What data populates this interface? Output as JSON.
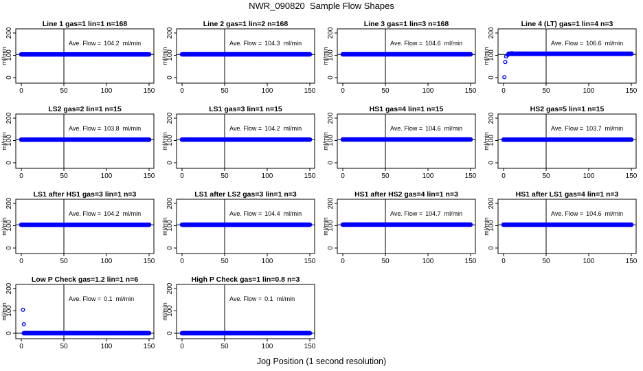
{
  "title": "NWR_090820  Sample Flow Shapes",
  "xlabel": "Jog Position (1 second resolution)",
  "colors": {
    "points": "#0000ff",
    "axes": "#000000",
    "background": "#ffffff"
  },
  "chart_data": [
    {
      "type": "scatter",
      "title": "Line 1 gas=1 lin=1 n=168",
      "ylabel": "ml/min",
      "annotation_label": "Ave. Flow =",
      "annotation_value": "104.2",
      "annotation_unit": "ml/min",
      "xlim": [
        0,
        150
      ],
      "ylim": [
        0,
        200
      ],
      "x_ticks": [
        "0",
        "50",
        "100",
        "150"
      ],
      "y_ticks": [
        "0",
        "100",
        "200"
      ],
      "vline_x": 50,
      "hline_y": 104,
      "series": [
        {
          "x_range": [
            0,
            150
          ],
          "y": 104.2,
          "outliers": []
        }
      ]
    },
    {
      "type": "scatter",
      "title": "Line 2 gas=1 lin=2 n=168",
      "ylabel": "ml/min",
      "annotation_label": "Ave. Flow =",
      "annotation_value": "104.3",
      "annotation_unit": "ml/min",
      "xlim": [
        0,
        150
      ],
      "ylim": [
        0,
        200
      ],
      "x_ticks": [
        "0",
        "50",
        "100",
        "150"
      ],
      "y_ticks": [
        "0",
        "100",
        "200"
      ],
      "vline_x": 50,
      "hline_y": 104,
      "series": [
        {
          "x_range": [
            0,
            150
          ],
          "y": 104.3,
          "outliers": []
        }
      ]
    },
    {
      "type": "scatter",
      "title": "Line 3 gas=1 lin=3 n=168",
      "ylabel": "ml/min",
      "annotation_label": "Ave. Flow =",
      "annotation_value": "104.6",
      "annotation_unit": "ml/min",
      "xlim": [
        0,
        150
      ],
      "ylim": [
        0,
        200
      ],
      "x_ticks": [
        "0",
        "50",
        "100",
        "150"
      ],
      "y_ticks": [
        "0",
        "100",
        "200"
      ],
      "vline_x": 50,
      "hline_y": 104,
      "series": [
        {
          "x_range": [
            0,
            150
          ],
          "y": 104.6,
          "outliers": []
        }
      ]
    },
    {
      "type": "scatter",
      "title": "Line 4 (LT) gas=1 lin=4 n=3",
      "ylabel": "ml/min",
      "annotation_label": "Ave. Flow =",
      "annotation_value": "106.6",
      "annotation_unit": "ml/min",
      "xlim": [
        0,
        150
      ],
      "ylim": [
        0,
        200
      ],
      "x_ticks": [
        "0",
        "50",
        "100",
        "150"
      ],
      "y_ticks": [
        "0",
        "100",
        "200"
      ],
      "vline_x": 50,
      "hline_y": 104,
      "series": [
        {
          "x_range": [
            6,
            150
          ],
          "y": 106.6,
          "outliers": [
            [
              1,
              2
            ],
            [
              2,
              70
            ],
            [
              3,
              95
            ],
            [
              5,
              102
            ],
            [
              10,
              110
            ]
          ]
        }
      ]
    },
    {
      "type": "scatter",
      "title": "LS2 gas=2 lin=1 n=15",
      "ylabel": "ml/min",
      "annotation_label": "Ave. Flow =",
      "annotation_value": "103.8",
      "annotation_unit": "ml/min",
      "xlim": [
        0,
        150
      ],
      "ylim": [
        0,
        200
      ],
      "x_ticks": [
        "0",
        "50",
        "100",
        "150"
      ],
      "y_ticks": [
        "0",
        "100",
        "200"
      ],
      "vline_x": 50,
      "hline_y": 104,
      "series": [
        {
          "x_range": [
            0,
            150
          ],
          "y": 103.8,
          "outliers": []
        }
      ]
    },
    {
      "type": "scatter",
      "title": "LS1 gas=3 lin=1 n=15",
      "ylabel": "ml/min",
      "annotation_label": "Ave. Flow =",
      "annotation_value": "104.2",
      "annotation_unit": "ml/min",
      "xlim": [
        0,
        150
      ],
      "ylim": [
        0,
        200
      ],
      "x_ticks": [
        "0",
        "50",
        "100",
        "150"
      ],
      "y_ticks": [
        "0",
        "100",
        "200"
      ],
      "vline_x": 50,
      "hline_y": 104,
      "series": [
        {
          "x_range": [
            0,
            150
          ],
          "y": 104.2,
          "outliers": []
        }
      ]
    },
    {
      "type": "scatter",
      "title": "HS1 gas=4 lin=1 n=15",
      "ylabel": "ml/min",
      "annotation_label": "Ave. Flow =",
      "annotation_value": "104.6",
      "annotation_unit": "ml/min",
      "xlim": [
        0,
        150
      ],
      "ylim": [
        0,
        200
      ],
      "x_ticks": [
        "0",
        "50",
        "100",
        "150"
      ],
      "y_ticks": [
        "0",
        "100",
        "200"
      ],
      "vline_x": 50,
      "hline_y": 104,
      "series": [
        {
          "x_range": [
            0,
            150
          ],
          "y": 104.6,
          "outliers": []
        }
      ]
    },
    {
      "type": "scatter",
      "title": "HS2 gas=5 lin=1 n=15",
      "ylabel": "ml/min",
      "annotation_label": "Ave. Flow =",
      "annotation_value": "103.7",
      "annotation_unit": "ml/min",
      "xlim": [
        0,
        150
      ],
      "ylim": [
        0,
        200
      ],
      "x_ticks": [
        "0",
        "50",
        "100",
        "150"
      ],
      "y_ticks": [
        "0",
        "100",
        "200"
      ],
      "vline_x": 50,
      "hline_y": 104,
      "series": [
        {
          "x_range": [
            0,
            150
          ],
          "y": 103.7,
          "outliers": []
        }
      ]
    },
    {
      "type": "scatter",
      "title": "LS1 after HS1 gas=3 lin=1 n=3",
      "ylabel": "ml/min",
      "annotation_label": "Ave. Flow =",
      "annotation_value": "104.2",
      "annotation_unit": "ml/min",
      "xlim": [
        0,
        150
      ],
      "ylim": [
        0,
        200
      ],
      "x_ticks": [
        "0",
        "50",
        "100",
        "150"
      ],
      "y_ticks": [
        "0",
        "100",
        "200"
      ],
      "vline_x": 50,
      "hline_y": 104,
      "series": [
        {
          "x_range": [
            0,
            150
          ],
          "y": 104.2,
          "outliers": []
        }
      ]
    },
    {
      "type": "scatter",
      "title": "LS1 after LS2 gas=3 lin=1 n=3",
      "ylabel": "ml/min",
      "annotation_label": "Ave. Flow =",
      "annotation_value": "104.4",
      "annotation_unit": "ml/min",
      "xlim": [
        0,
        150
      ],
      "ylim": [
        0,
        200
      ],
      "x_ticks": [
        "0",
        "50",
        "100",
        "150"
      ],
      "y_ticks": [
        "0",
        "100",
        "200"
      ],
      "vline_x": 50,
      "hline_y": 104,
      "series": [
        {
          "x_range": [
            0,
            150
          ],
          "y": 104.4,
          "outliers": []
        }
      ]
    },
    {
      "type": "scatter",
      "title": "HS1 after HS2 gas=4 lin=1 n=3",
      "ylabel": "ml/min",
      "annotation_label": "Ave. Flow =",
      "annotation_value": "104.7",
      "annotation_unit": "ml/min",
      "xlim": [
        0,
        150
      ],
      "ylim": [
        0,
        200
      ],
      "x_ticks": [
        "0",
        "50",
        "100",
        "150"
      ],
      "y_ticks": [
        "0",
        "100",
        "200"
      ],
      "vline_x": 50,
      "hline_y": 104,
      "series": [
        {
          "x_range": [
            0,
            150
          ],
          "y": 104.7,
          "outliers": []
        }
      ]
    },
    {
      "type": "scatter",
      "title": "HS1 after LS1 gas=4 lin=1 n=3",
      "ylabel": "ml/min",
      "annotation_label": "Ave. Flow =",
      "annotation_value": "104.6",
      "annotation_unit": "ml/min",
      "xlim": [
        0,
        150
      ],
      "ylim": [
        0,
        200
      ],
      "x_ticks": [
        "0",
        "50",
        "100",
        "150"
      ],
      "y_ticks": [
        "0",
        "100",
        "200"
      ],
      "vline_x": 50,
      "hline_y": 104,
      "series": [
        {
          "x_range": [
            0,
            150
          ],
          "y": 104.6,
          "outliers": []
        }
      ]
    },
    {
      "type": "scatter",
      "title": "Low P Check gas=1.2 lin=1 n=6",
      "ylabel": "ml/min",
      "annotation_label": "Ave. Flow =",
      "annotation_value": "0.1",
      "annotation_unit": "ml/min",
      "xlim": [
        0,
        150
      ],
      "ylim": [
        0,
        200
      ],
      "x_ticks": [
        "0",
        "50",
        "100",
        "150"
      ],
      "y_ticks": [
        "0",
        "100",
        "200"
      ],
      "vline_x": 50,
      "hline_y": 0,
      "series": [
        {
          "x_range": [
            3,
            150
          ],
          "y": 0.1,
          "outliers": [
            [
              2,
              105
            ],
            [
              3,
              40
            ]
          ]
        }
      ]
    },
    {
      "type": "scatter",
      "title": "High P Check gas=1 lin=0.8 n=3",
      "ylabel": "ml/min",
      "annotation_label": "Ave. Flow =",
      "annotation_value": "0.1",
      "annotation_unit": "ml/min",
      "xlim": [
        0,
        150
      ],
      "ylim": [
        0,
        200
      ],
      "x_ticks": [
        "0",
        "50",
        "100",
        "150"
      ],
      "y_ticks": [
        "0",
        "100",
        "200"
      ],
      "vline_x": 50,
      "hline_y": 0,
      "series": [
        {
          "x_range": [
            0,
            150
          ],
          "y": 0.1,
          "outliers": []
        }
      ]
    }
  ]
}
